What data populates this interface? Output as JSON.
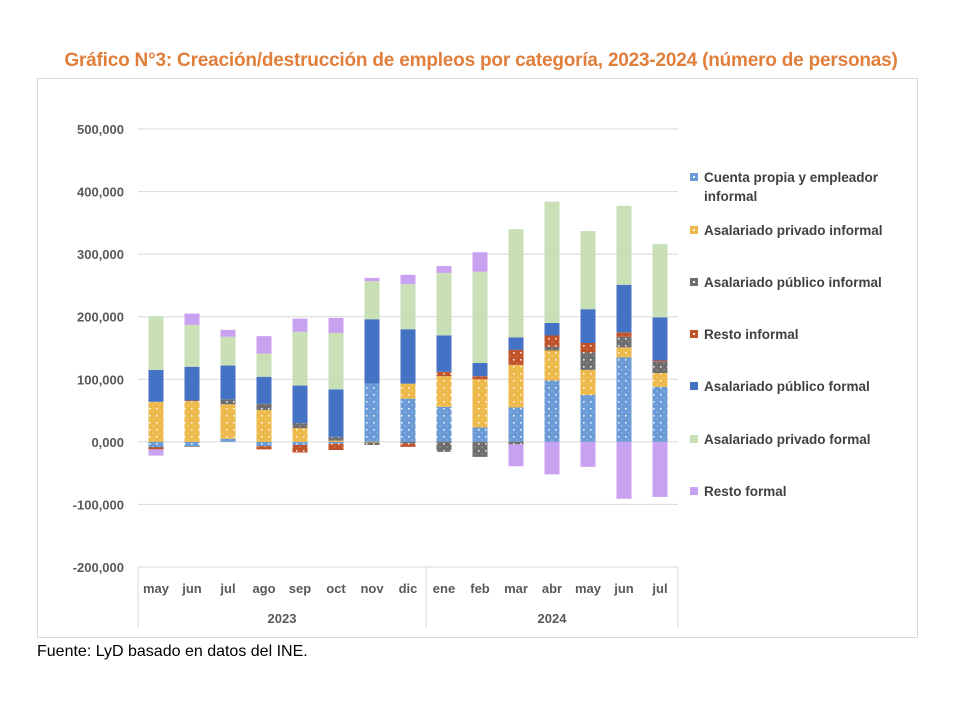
{
  "title": "Gráfico N°3: Creación/destrucción de empleos por categoría, 2023-2024 (número de personas)",
  "source": "Fuente: LyD basado en datos del INE.",
  "chart_data": {
    "type": "bar",
    "stacked": true,
    "title": "Gráfico N°3: Creación/destrucción de empleos por categoría, 2023-2024 (número de personas)",
    "xlabel": "",
    "ylabel": "",
    "ylim": [
      -200000,
      500000
    ],
    "yticks": [
      -200000,
      -100000,
      0,
      100000,
      200000,
      300000,
      400000,
      500000
    ],
    "ytick_labels": [
      "-200,000",
      "-100,000",
      "0,000",
      "100,000",
      "200,000",
      "300,000",
      "400,000",
      "500,000"
    ],
    "grid": true,
    "legend_position": "right",
    "categories": [
      "may",
      "jun",
      "jul",
      "ago",
      "sep",
      "oct",
      "nov",
      "dic",
      "ene",
      "feb",
      "mar",
      "abr",
      "may",
      "jun",
      "jul"
    ],
    "year_groups": [
      {
        "label": "2023",
        "count": 8
      },
      {
        "label": "2024",
        "count": 7
      }
    ],
    "series": [
      {
        "name": "Cuenta propia y empleador informal",
        "color": "#6A9BD6",
        "pattern": "dots",
        "values": [
          -8000,
          -7000,
          5000,
          -7000,
          -5000,
          -3000,
          93000,
          69000,
          56000,
          23000,
          55000,
          98000,
          75000,
          135000,
          88000
        ]
      },
      {
        "name": "Asalariado privado informal",
        "color": "#EDB94A",
        "pattern": "dots",
        "values": [
          64000,
          65000,
          55000,
          51000,
          22000,
          2000,
          -1000,
          24000,
          49000,
          77000,
          68000,
          48000,
          40000,
          16000,
          22000
        ]
      },
      {
        "name": "Asalariado público informal",
        "color": "#6E6E6E",
        "pattern": "dots",
        "values": [
          -1000,
          -1000,
          8000,
          10000,
          8000,
          6000,
          -4000,
          -3000,
          -16000,
          -24000,
          -4000,
          6000,
          28000,
          17000,
          18000
        ]
      },
      {
        "name": "Resto informal",
        "color": "#C0532A",
        "pattern": "dots",
        "values": [
          -3000,
          1000,
          0,
          -5000,
          -12000,
          -10000,
          0,
          -5000,
          7000,
          5000,
          24000,
          18000,
          15000,
          7000,
          2000
        ]
      },
      {
        "name": "Asalariado público formal",
        "color": "#4472C4",
        "pattern": "solid",
        "values": [
          51000,
          54000,
          54000,
          43000,
          60000,
          76000,
          103000,
          87000,
          58000,
          21000,
          20000,
          20000,
          54000,
          76000,
          69000
        ]
      },
      {
        "name": "Asalariado privado formal",
        "color": "#C9DFB6",
        "pattern": "solid",
        "values": [
          86000,
          67000,
          46000,
          37000,
          86000,
          90000,
          61000,
          72000,
          100000,
          146000,
          173000,
          194000,
          125000,
          126000,
          117000
        ]
      },
      {
        "name": "Resto formal",
        "color": "#C8A2F0",
        "pattern": "solid",
        "values": [
          -10000,
          18000,
          11000,
          28000,
          21000,
          24000,
          5000,
          15000,
          11000,
          31000,
          -35000,
          -52000,
          -40000,
          -91000,
          -88000
        ]
      }
    ]
  }
}
